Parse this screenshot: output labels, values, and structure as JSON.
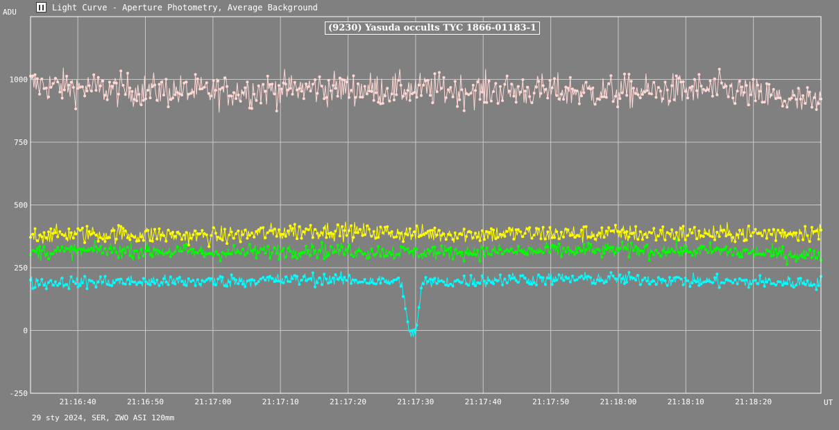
{
  "window": {
    "title": "Light Curve - Aperture Photometry, Average Background",
    "icon": "light-curve-app-icon"
  },
  "footer": "29 sty 2024, SER, ZWO ASI 120mm",
  "chart_data": {
    "type": "line",
    "title": "(9230) Yasuda occults TYC 1866-01183-1",
    "ylabel": "ADU",
    "xlabel": "UT",
    "ylim": [
      -250,
      1250
    ],
    "yticks": [
      -250,
      0,
      250,
      500,
      750,
      1000
    ],
    "xlim": [
      "21:16:33",
      "21:18:30"
    ],
    "xticks": [
      "21:16:40",
      "21:16:50",
      "21:17:00",
      "21:17:10",
      "21:17:20",
      "21:17:30",
      "21:17:40",
      "21:17:50",
      "21:18:00",
      "21:18:10",
      "21:18:20"
    ],
    "grid": true,
    "colors": {
      "background": "#808080",
      "grid": "#c8c8c8",
      "axis": "#ffffff"
    },
    "series": [
      {
        "color": "#ffd8d4",
        "points_x": [
          "21:16:33",
          "21:16:45",
          "21:17:00",
          "21:17:15",
          "21:17:30",
          "21:17:45",
          "21:18:00",
          "21:18:15",
          "21:18:30"
        ],
        "points_y": [
          980,
          960,
          950,
          965,
          960,
          955,
          950,
          960,
          900
        ],
        "noise": 65
      },
      {
        "color": "#ffff00",
        "points_x": [
          "21:16:33",
          "21:16:45",
          "21:17:00",
          "21:17:15",
          "21:17:30",
          "21:17:45",
          "21:18:00",
          "21:18:15",
          "21:18:30"
        ],
        "points_y": [
          380,
          385,
          375,
          400,
          385,
          385,
          385,
          385,
          390
        ],
        "noise": 35
      },
      {
        "color": "#00ff00",
        "points_x": [
          "21:16:33",
          "21:16:45",
          "21:17:00",
          "21:17:15",
          "21:17:30",
          "21:17:45",
          "21:18:00",
          "21:18:15",
          "21:18:30"
        ],
        "points_y": [
          310,
          320,
          310,
          320,
          310,
          315,
          320,
          315,
          300
        ],
        "noise": 30
      },
      {
        "color": "#00ffff",
        "points_x": [
          "21:16:33",
          "21:16:45",
          "21:17:00",
          "21:17:15",
          "21:17:28",
          "21:17:29",
          "21:17:30",
          "21:17:31",
          "21:17:45",
          "21:18:00",
          "21:18:15",
          "21:18:30"
        ],
        "points_y": [
          190,
          195,
          195,
          205,
          195,
          -15,
          -10,
          190,
          205,
          205,
          195,
          190
        ],
        "noise": 25
      }
    ]
  }
}
